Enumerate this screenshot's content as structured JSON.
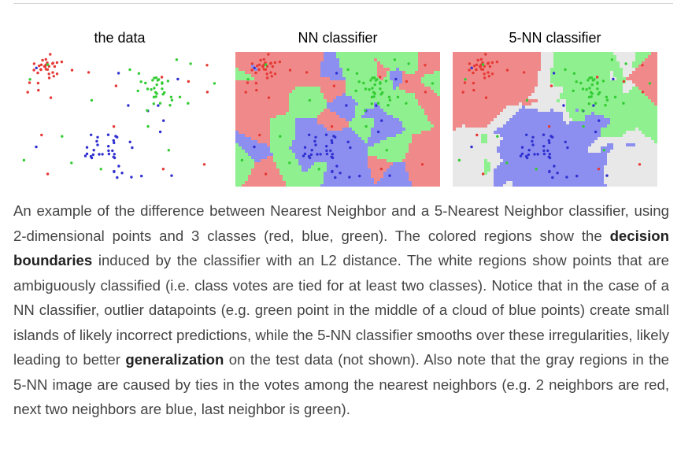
{
  "figure": {
    "titles": [
      "the data",
      "NN classifier",
      "5-NN classifier"
    ],
    "colors": {
      "red": "#e53935",
      "blue": "#3030d0",
      "green": "#33cc33",
      "red_region": "#f08a8a",
      "blue_region": "#8c8ff0",
      "green_region": "#8ff08f",
      "gray_region": "#e8e8e8"
    }
  },
  "caption": {
    "p1": "An example of the difference between Nearest Neighbor and a 5-Nearest Neighbor classifier, using 2-dimensional points and 3 classes (red, blue, green). The colored regions show the ",
    "b1": "decision boundaries",
    "p2": " induced by the classifier with an L2 distance. The white regions show points that are ambiguously classified (i.e. class votes are tied for at least two classes). Notice that in the case of a NN classifier, outlier datapoints (e.g. green point in the middle of a cloud of blue points) create small islands of likely incorrect predictions, while the 5-NN classifier smooths over these irregularities, likely leading to better ",
    "b2": "generalization",
    "p3": " on the test data (not shown). Also note that the gray regions in the 5-NN image are caused by ties in the votes among the nearest neighbors (e.g. 2 neighbors are red, next two neighbors are blue, last neighbor is green)."
  }
}
